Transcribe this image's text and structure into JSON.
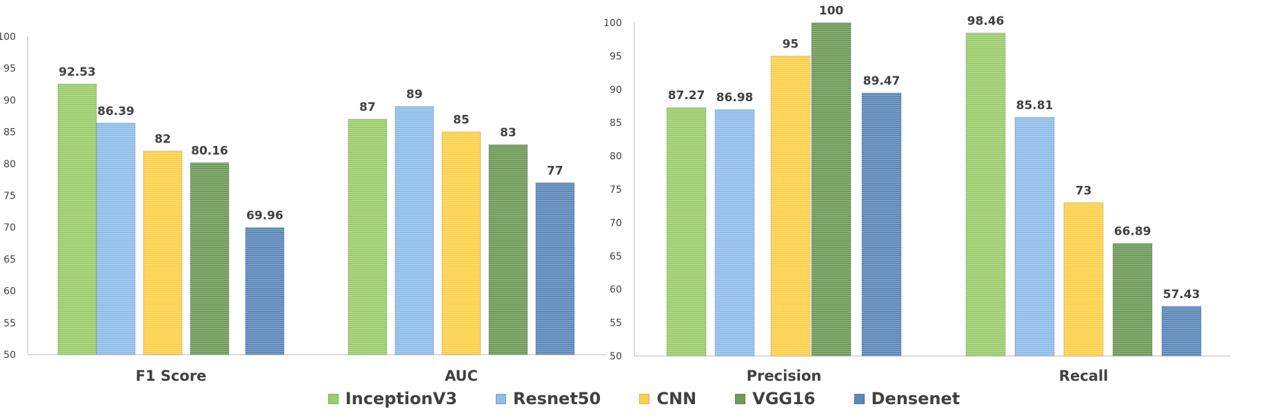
{
  "chart_data": [
    {
      "type": "bar",
      "categories": [
        "F1 Score",
        "AUC"
      ],
      "series": [
        {
          "name": "InceptionV3",
          "values": [
            92.53,
            87
          ]
        },
        {
          "name": "Resnet50",
          "values": [
            86.39,
            89
          ]
        },
        {
          "name": "CNN",
          "values": [
            82,
            85
          ]
        },
        {
          "name": "VGG16",
          "values": [
            80.16,
            83
          ]
        },
        {
          "name": "Densenet",
          "values": [
            69.96,
            77
          ]
        }
      ],
      "data_labels": [
        [
          "92.53",
          "87"
        ],
        [
          "86.39",
          "89"
        ],
        [
          "82",
          "85"
        ],
        [
          "80.16",
          "83"
        ],
        [
          "69.96",
          "77"
        ]
      ],
      "ylim": [
        50,
        100
      ],
      "yticks": [
        "50",
        "55",
        "60",
        "65",
        "70",
        "75",
        "80",
        "85",
        "90",
        "95",
        "100"
      ],
      "grid": false
    },
    {
      "type": "bar",
      "categories": [
        "Precision",
        "Recall"
      ],
      "series": [
        {
          "name": "InceptionV3",
          "values": [
            87.27,
            98.46
          ]
        },
        {
          "name": "Resnet50",
          "values": [
            86.98,
            85.81
          ]
        },
        {
          "name": "CNN",
          "values": [
            95,
            73
          ]
        },
        {
          "name": "VGG16",
          "values": [
            100,
            66.89
          ]
        },
        {
          "name": "Densenet",
          "values": [
            89.47,
            57.43
          ]
        }
      ],
      "data_labels": [
        [
          "87.27",
          "98.46"
        ],
        [
          "86.98",
          "85.81"
        ],
        [
          "95",
          "73"
        ],
        [
          "100",
          "66.89"
        ],
        [
          "89.47",
          "57.43"
        ]
      ],
      "ylim": [
        50,
        100
      ],
      "yticks": [
        "50",
        "55",
        "60",
        "65",
        "70",
        "75",
        "80",
        "85",
        "90",
        "95",
        "100"
      ],
      "grid": false
    }
  ],
  "legend": {
    "position": "bottom",
    "items": [
      "InceptionV3",
      "Resnet50",
      "CNN",
      "VGG16",
      "Densenet"
    ]
  },
  "colors": {
    "InceptionV3": "#9ccc6c",
    "Resnet50": "#8fbde9",
    "CNN": "#ffd04a",
    "VGG16": "#6f9a58",
    "Densenet": "#5b88b9",
    "axis": "#b8b8b8",
    "text": "#404040"
  }
}
